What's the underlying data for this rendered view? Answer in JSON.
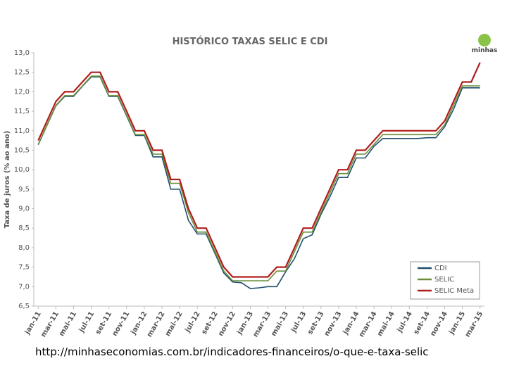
{
  "chart_data": {
    "type": "line",
    "title": "HISTÓRICO TAXAS SELIC E CDI",
    "y_label": "Taxa de juros (% ao ano)",
    "categories": [
      "jan-11",
      null,
      "mar-11",
      null,
      "mai-11",
      null,
      "jul-11",
      null,
      "set-11",
      null,
      "nov-11",
      null,
      "jan-12",
      null,
      "mar-12",
      null,
      "mai-12",
      null,
      "jul-12",
      null,
      "set-12",
      null,
      "nov-12",
      null,
      "jan-13",
      null,
      "mar-13",
      null,
      "mai-13",
      null,
      "jul-13",
      null,
      "set-13",
      null,
      "nov-13",
      null,
      "jan-14",
      null,
      "mar-14",
      null,
      "mai-14",
      null,
      "jul-14",
      null,
      "set-14",
      null,
      "nov-14",
      null,
      "jan-15",
      null,
      "mar-15"
    ],
    "series": [
      {
        "name": "CDI",
        "color": "#1f4e6e",
        "values": [
          10.64,
          11.14,
          11.64,
          11.88,
          11.88,
          12.14,
          12.38,
          12.38,
          11.88,
          11.88,
          11.38,
          10.88,
          10.88,
          10.33,
          10.33,
          9.5,
          9.5,
          8.7,
          8.35,
          8.35,
          7.85,
          7.35,
          7.12,
          7.1,
          6.95,
          6.97,
          7.0,
          7.0,
          7.38,
          7.72,
          8.23,
          8.33,
          8.85,
          9.3,
          9.8,
          9.8,
          10.3,
          10.3,
          10.6,
          10.8,
          10.8,
          10.8,
          10.8,
          10.8,
          10.82,
          10.82,
          11.1,
          11.55,
          12.1,
          12.1,
          12.1
        ]
      },
      {
        "name": "SELIC",
        "color": "#6a8f3a",
        "values": [
          10.65,
          11.15,
          11.65,
          11.9,
          11.9,
          12.15,
          12.4,
          12.4,
          11.9,
          11.9,
          11.4,
          10.9,
          10.9,
          10.4,
          10.4,
          9.65,
          9.65,
          8.9,
          8.4,
          8.4,
          7.9,
          7.4,
          7.15,
          7.15,
          7.15,
          7.15,
          7.15,
          7.4,
          7.4,
          7.9,
          8.4,
          8.4,
          8.9,
          9.4,
          9.9,
          9.9,
          10.4,
          10.4,
          10.65,
          10.9,
          10.9,
          10.9,
          10.9,
          10.9,
          10.9,
          10.9,
          11.15,
          11.65,
          12.15,
          12.15,
          12.15
        ]
      },
      {
        "name": "SELIC Meta",
        "color": "#b01c1c",
        "values": [
          10.75,
          11.25,
          11.75,
          12,
          12,
          12.25,
          12.5,
          12.5,
          12,
          12,
          11.5,
          11,
          11,
          10.5,
          10.5,
          9.75,
          9.75,
          9,
          8.5,
          8.5,
          8,
          7.5,
          7.25,
          7.25,
          7.25,
          7.25,
          7.25,
          7.5,
          7.5,
          8,
          8.5,
          8.5,
          9,
          9.5,
          10,
          10,
          10.5,
          10.5,
          10.75,
          11,
          11,
          11,
          11,
          11,
          11,
          11,
          11.25,
          11.75,
          12.25,
          12.25,
          12.75
        ]
      }
    ],
    "ylim": [
      6.5,
      13.0
    ],
    "yticks": [
      {
        "value": 6.5,
        "label": "6,5"
      },
      {
        "value": 7.0,
        "label": "7,0"
      },
      {
        "value": 7.5,
        "label": "7,5"
      },
      {
        "value": 8.0,
        "label": "8,0"
      },
      {
        "value": 8.5,
        "label": "8,5"
      },
      {
        "value": 9.0,
        "label": "9,0"
      },
      {
        "value": 9.5,
        "label": "9,5"
      },
      {
        "value": 10.0,
        "label": "10,0"
      },
      {
        "value": 10.5,
        "label": "10,5"
      },
      {
        "value": 11.0,
        "label": "11,0"
      },
      {
        "value": 11.5,
        "label": "11,5"
      },
      {
        "value": 12.0,
        "label": "12,0"
      },
      {
        "value": 12.5,
        "label": "12,5"
      },
      {
        "value": 13.0,
        "label": "13,0"
      }
    ],
    "legend": "bottom-right"
  },
  "logo": {
    "text": "minhas"
  },
  "footer": {
    "url": "http://minhaseconomias.com.br/indicadores-financeiros/o-que-e-taxa-selic"
  }
}
